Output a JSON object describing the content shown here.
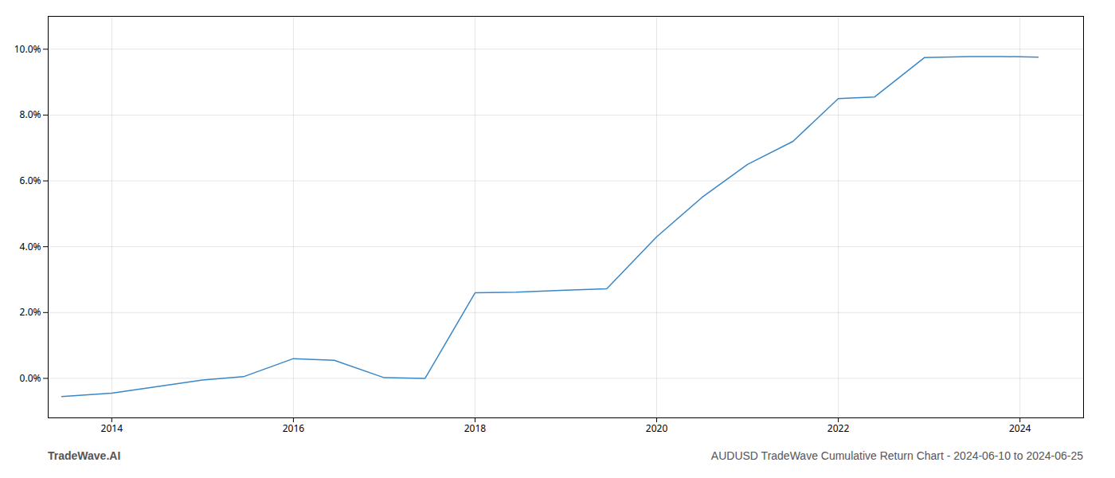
{
  "chart_data": {
    "type": "line",
    "title": "AUDUSD TradeWave Cumulative Return Chart - 2024-06-10 to 2024-06-25",
    "annotations": [
      "TradeWave.AI"
    ],
    "x": [
      2013.45,
      2014.0,
      2014.5,
      2015.0,
      2015.45,
      2016.0,
      2016.45,
      2017.0,
      2017.45,
      2018.0,
      2018.45,
      2019.0,
      2019.45,
      2020.0,
      2020.5,
      2021.0,
      2021.5,
      2022.0,
      2022.4,
      2022.95,
      2023.45,
      2023.8,
      2024.2
    ],
    "values": [
      -0.55,
      -0.45,
      -0.25,
      -0.05,
      0.05,
      0.6,
      0.55,
      0.02,
      0.0,
      2.6,
      2.62,
      2.68,
      2.72,
      4.3,
      5.5,
      6.5,
      7.2,
      8.5,
      8.55,
      9.75,
      9.78,
      9.78,
      9.76
    ],
    "color": "#3a87c8",
    "xlim": [
      2013.3,
      2024.7
    ],
    "xticks": [
      2014,
      2016,
      2018,
      2020,
      2022,
      2024
    ],
    "ylim": [
      -1.2,
      11.0
    ],
    "yticks": [
      {
        "value": 0.0,
        "label": "0.0%"
      },
      {
        "value": 2.0,
        "label": "2.0%"
      },
      {
        "value": 4.0,
        "label": "4.0%"
      },
      {
        "value": 6.0,
        "label": "6.0%"
      },
      {
        "value": 8.0,
        "label": "8.0%"
      },
      {
        "value": 10.0,
        "label": "10.0%"
      }
    ],
    "grid": true
  }
}
